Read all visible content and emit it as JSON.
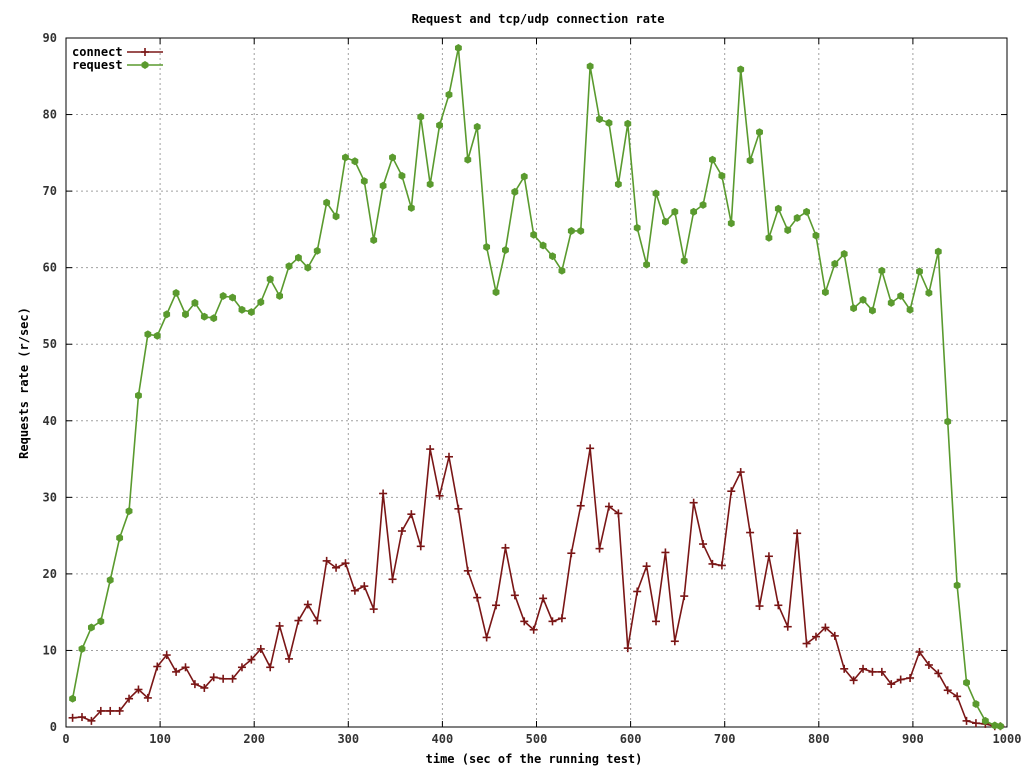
{
  "chart_data": {
    "type": "line",
    "title": "Request and tcp/udp connection rate",
    "xlabel": "time (sec of the running test)",
    "ylabel": "Requests rate (r/sec)",
    "xlim": [
      0,
      1000
    ],
    "ylim": [
      0,
      90
    ],
    "xticks": [
      0,
      100,
      200,
      300,
      400,
      500,
      600,
      700,
      800,
      900,
      1000
    ],
    "yticks": [
      0,
      10,
      20,
      30,
      40,
      50,
      60,
      70,
      80,
      90
    ],
    "grid": true,
    "legend_position": "top-left",
    "series": [
      {
        "name": "connect",
        "color": "#7a1616",
        "marker": "plus",
        "x": [
          7,
          17,
          27,
          37,
          47,
          57,
          67,
          77,
          87,
          97,
          107,
          117,
          127,
          137,
          147,
          157,
          167,
          177,
          187,
          197,
          207,
          217,
          227,
          237,
          247,
          257,
          267,
          277,
          287,
          297,
          307,
          317,
          327,
          337,
          347,
          357,
          367,
          377,
          387,
          397,
          407,
          417,
          427,
          437,
          447,
          457,
          467,
          477,
          487,
          497,
          507,
          517,
          527,
          537,
          547,
          557,
          567,
          577,
          587,
          597,
          607,
          617,
          627,
          637,
          647,
          657,
          667,
          677,
          687,
          697,
          707,
          717,
          727,
          737,
          747,
          757,
          767,
          777,
          787,
          797,
          807,
          817,
          827,
          837,
          847,
          857,
          867,
          877,
          887,
          897,
          907,
          917,
          927,
          937,
          947,
          957,
          967,
          977,
          987,
          993
        ],
        "y": [
          1.2,
          1.3,
          0.8,
          2.1,
          2.1,
          2.1,
          3.7,
          4.9,
          3.8,
          7.9,
          9.4,
          7.2,
          7.8,
          5.6,
          5.1,
          6.5,
          6.3,
          6.3,
          7.8,
          8.8,
          10.2,
          7.8,
          13.2,
          8.9,
          13.9,
          16.0,
          13.9,
          21.7,
          20.8,
          21.4,
          17.8,
          18.4,
          15.4,
          30.5,
          19.3,
          25.6,
          27.8,
          23.6,
          36.3,
          30.2,
          35.3,
          28.5,
          20.4,
          16.9,
          11.7,
          15.9,
          23.4,
          17.2,
          13.8,
          12.7,
          16.8,
          13.8,
          14.2,
          22.7,
          28.9,
          36.4,
          23.3,
          28.8,
          27.9,
          10.3,
          17.7,
          21.0,
          13.8,
          22.8,
          11.2,
          17.1,
          29.3,
          23.9,
          21.3,
          21.1,
          30.8,
          33.3,
          25.4,
          15.8,
          22.3,
          15.9,
          13.1,
          25.3,
          10.9,
          11.8,
          13.0,
          11.9,
          7.6,
          6.1,
          7.6,
          7.2,
          7.2,
          5.6,
          6.2,
          6.4,
          9.8,
          8.1,
          7.0,
          4.8,
          4.0,
          0.8,
          0.5,
          0.4,
          0.1,
          0.1
        ]
      },
      {
        "name": "request",
        "color": "#5a9a2e",
        "marker": "hexagon",
        "x": [
          7,
          17,
          27,
          37,
          47,
          57,
          67,
          77,
          87,
          97,
          107,
          117,
          127,
          137,
          147,
          157,
          167,
          177,
          187,
          197,
          207,
          217,
          227,
          237,
          247,
          257,
          267,
          277,
          287,
          297,
          307,
          317,
          327,
          337,
          347,
          357,
          367,
          377,
          387,
          397,
          407,
          417,
          427,
          437,
          447,
          457,
          467,
          477,
          487,
          497,
          507,
          517,
          527,
          537,
          547,
          557,
          567,
          577,
          587,
          597,
          607,
          617,
          627,
          637,
          647,
          657,
          667,
          677,
          687,
          697,
          707,
          717,
          727,
          737,
          747,
          757,
          767,
          777,
          787,
          797,
          807,
          817,
          827,
          837,
          847,
          857,
          867,
          877,
          887,
          897,
          907,
          917,
          927,
          937,
          947,
          957,
          967,
          977,
          987,
          993
        ],
        "y": [
          3.7,
          10.2,
          13.0,
          13.8,
          19.2,
          24.7,
          28.2,
          43.3,
          51.3,
          51.1,
          53.9,
          56.7,
          53.9,
          55.4,
          53.6,
          53.4,
          56.3,
          56.1,
          54.5,
          54.2,
          55.5,
          58.5,
          56.3,
          60.2,
          61.3,
          60.0,
          62.2,
          68.5,
          66.7,
          74.4,
          73.9,
          71.3,
          63.6,
          70.7,
          74.4,
          72.0,
          67.8,
          79.7,
          70.9,
          78.6,
          82.6,
          88.7,
          74.1,
          78.4,
          62.7,
          56.8,
          62.3,
          69.9,
          71.9,
          64.3,
          62.9,
          61.5,
          59.6,
          64.8,
          64.8,
          86.3,
          79.4,
          78.9,
          70.9,
          78.8,
          65.2,
          60.4,
          69.7,
          66.0,
          67.3,
          60.9,
          67.3,
          68.2,
          74.1,
          72.0,
          65.8,
          85.9,
          74.0,
          77.7,
          63.9,
          67.7,
          64.9,
          66.5,
          67.3,
          64.2,
          56.8,
          60.5,
          61.8,
          54.7,
          55.8,
          54.4,
          59.6,
          55.4,
          56.3,
          54.5,
          59.5,
          56.7,
          62.1,
          39.9,
          18.5,
          5.8,
          3.0,
          0.8,
          0.2,
          0.1
        ]
      }
    ]
  }
}
